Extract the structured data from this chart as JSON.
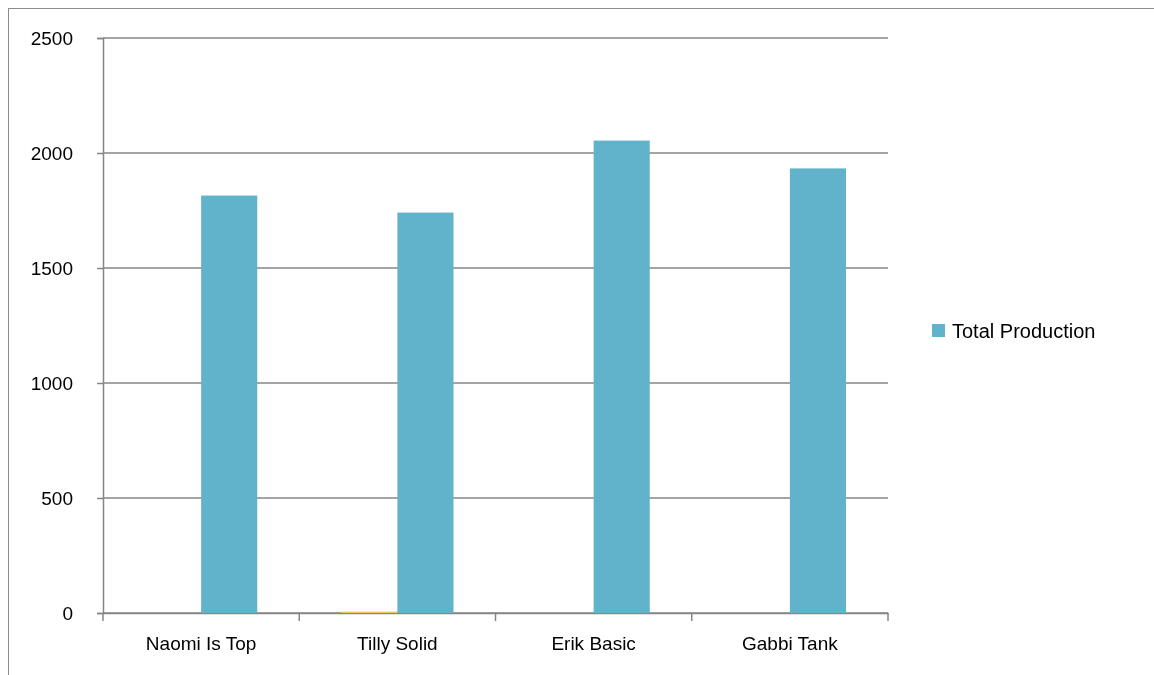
{
  "chart_data": {
    "type": "bar",
    "categories": [
      "Naomi Is Top",
      "Tilly Solid",
      "Erik Basic",
      "Gabbi Tank"
    ],
    "series": [
      {
        "color": "#f0c75e",
        "values": [
          null,
          6,
          null,
          null
        ]
      },
      {
        "name": "Total Production",
        "color": "#61b3cc",
        "values": [
          1815,
          1741,
          2054,
          1933
        ]
      }
    ],
    "ylim": [
      0,
      2500
    ],
    "yticks": [
      0,
      500,
      1000,
      1500,
      2000,
      2500
    ],
    "grid": "y",
    "legend": "right"
  }
}
